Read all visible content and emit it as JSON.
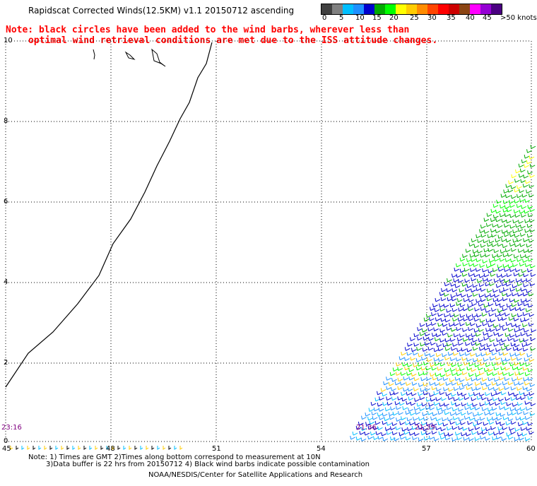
{
  "title": "Rapidscat Corrected Winds(12.5KM) v1.1 20150712 ascending",
  "note_line1": "Note: black circles have been added to the wind barbs, wherever less than",
  "note_line2": "optimal wind retrieval conditions are met due to the ISS attitude changes.",
  "legend": {
    "labels": [
      "0",
      "5",
      "10",
      "15",
      "20",
      "25",
      "30",
      "35",
      "40",
      "45",
      ">50 knots"
    ],
    "colors": [
      "#404040",
      "#808080",
      "#00bfff",
      "#1e90ff",
      "#0000cd",
      "#00aa00",
      "#00ff00",
      "#ffff00",
      "#ffcc00",
      "#ff8c00",
      "#ff4500",
      "#ff0000",
      "#cc0000",
      "#8b4513",
      "#ff00ff",
      "#9400d3",
      "#4b0082"
    ]
  },
  "axes": {
    "y_labels": [
      "10",
      "8",
      "6",
      "4",
      "2",
      "0"
    ],
    "x_labels": [
      "45",
      "48",
      "51",
      "54",
      "57",
      "60"
    ]
  },
  "times": [
    "23:16",
    "21:36",
    "21:39"
  ],
  "footer": {
    "line1": "Note: 1) Times are GMT 2)Times along bottom correspond to measurement at 10N",
    "line2": "3)Data buffer is 22 hrs from 20150712 4) Black wind barbs indicate possible contamination",
    "line3": "NOAA/NESDIS/Center for Satellite Applications and Research"
  }
}
